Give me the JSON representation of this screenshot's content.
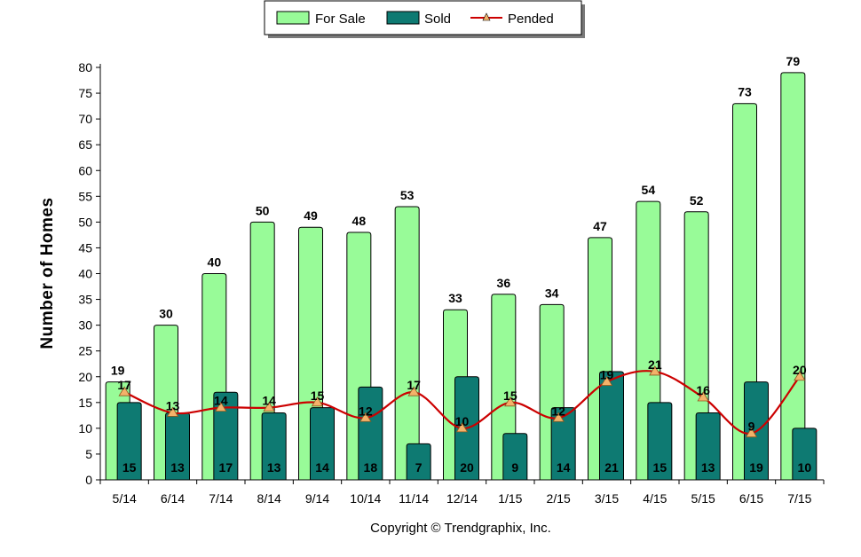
{
  "chart_data": {
    "type": "bar",
    "categories": [
      "5/14",
      "6/14",
      "7/14",
      "8/14",
      "9/14",
      "10/14",
      "11/14",
      "12/14",
      "1/15",
      "2/15",
      "3/15",
      "4/15",
      "5/15",
      "6/15",
      "7/15"
    ],
    "series": [
      {
        "name": "For Sale",
        "type": "bar",
        "color": "#98fb98",
        "values": [
          19,
          30,
          40,
          50,
          49,
          48,
          53,
          33,
          36,
          34,
          47,
          54,
          52,
          73,
          79
        ]
      },
      {
        "name": "Sold",
        "type": "bar",
        "color": "#0e7a72",
        "values": [
          15,
          13,
          17,
          13,
          14,
          18,
          7,
          20,
          9,
          14,
          21,
          15,
          13,
          19,
          10
        ]
      },
      {
        "name": "Pended",
        "type": "line",
        "color": "#cc0000",
        "marker_color": "#f4b26a",
        "values": [
          17,
          13,
          14,
          14,
          15,
          12,
          17,
          10,
          15,
          12,
          19,
          21,
          16,
          9,
          20
        ]
      }
    ],
    "ylabel": "Number of Homes",
    "xlabel": "",
    "ylim": [
      0,
      80
    ],
    "ytick_step": 5,
    "legend_position": "top-center",
    "grid": false
  },
  "footer": {
    "copyright": "Copyright © Trendgraphix, Inc."
  }
}
